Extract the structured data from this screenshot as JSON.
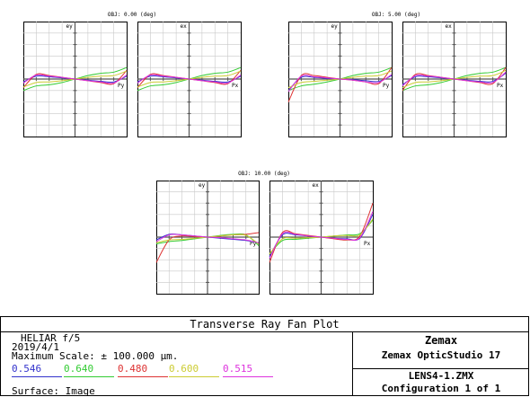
{
  "plot": {
    "title": "Transverse Ray Fan Plot",
    "fields": [
      {
        "label": "OBJ: 0.00 (deg)",
        "ey_label": "ey",
        "ex_label": "ex",
        "py_label": "Py",
        "px_label": "Px"
      },
      {
        "label": "OBJ: 5.00 (deg)",
        "ey_label": "ey",
        "ex_label": "ex",
        "py_label": "Py",
        "px_label": "Px"
      },
      {
        "label": "OBJ: 10.00 (deg)",
        "ey_label": "ey",
        "ex_label": "ex",
        "py_label": "Py",
        "px_label": "Px"
      }
    ]
  },
  "info": {
    "lens_title": "HELIAR  f/5",
    "date": "2019/4/1",
    "max_scale": "Maximum Scale: ± 100.000 µm.",
    "surface": "Surface: Image"
  },
  "wavelengths": [
    {
      "value": "0.546",
      "color": "#3333cc"
    },
    {
      "value": "0.640",
      "color": "#33cc33"
    },
    {
      "value": "0.480",
      "color": "#dd3333"
    },
    {
      "value": "0.600",
      "color": "#cccc33"
    },
    {
      "value": "0.515",
      "color": "#dd33dd"
    }
  ],
  "brand": {
    "company": "Zemax",
    "product": "Zemax OpticStudio 17",
    "file": "LENS4-1.ZMX",
    "config": "Configuration 1 of 1"
  },
  "chart_data": {
    "type": "line",
    "title": "Transverse Ray Fan Plot",
    "max_scale_um": 100,
    "x_range": [
      -1,
      1
    ],
    "y_range_um": [
      -100,
      100
    ],
    "wavelengths_um": [
      0.546,
      0.64,
      0.48,
      0.6,
      0.515
    ],
    "plots": [
      {
        "field": "OBJ: 0.00 (deg)",
        "axis": "ey vs Py",
        "x": [
          -1,
          -0.75,
          -0.5,
          -0.25,
          0,
          0.25,
          0.5,
          0.75,
          1
        ],
        "series": [
          {
            "name": "0.546",
            "values": [
              -5,
              5,
              4,
              2,
              0,
              -2,
              -4,
              -5,
              5
            ]
          },
          {
            "name": "0.640",
            "values": [
              -20,
              -12,
              -10,
              -6,
              0,
              6,
              10,
              12,
              20
            ]
          },
          {
            "name": "0.480",
            "values": [
              -15,
              8,
              6,
              3,
              0,
              -3,
              -6,
              -8,
              15
            ]
          },
          {
            "name": "0.600",
            "values": [
              -14,
              -6,
              -5,
              -3,
              0,
              3,
              5,
              6,
              14
            ]
          },
          {
            "name": "0.515",
            "values": [
              -7,
              7,
              5,
              3,
              0,
              -3,
              -5,
              -7,
              7
            ]
          }
        ]
      },
      {
        "field": "OBJ: 0.00 (deg)",
        "axis": "ex vs Px",
        "x": [
          -1,
          -0.75,
          -0.5,
          -0.25,
          0,
          0.25,
          0.5,
          0.75,
          1
        ],
        "series": [
          {
            "name": "0.546",
            "values": [
              -5,
              5,
              4,
              2,
              0,
              -2,
              -4,
              -5,
              5
            ]
          },
          {
            "name": "0.640",
            "values": [
              -20,
              -12,
              -10,
              -6,
              0,
              6,
              10,
              12,
              20
            ]
          },
          {
            "name": "0.480",
            "values": [
              -15,
              8,
              6,
              3,
              0,
              -3,
              -6,
              -8,
              15
            ]
          },
          {
            "name": "0.600",
            "values": [
              -14,
              -6,
              -5,
              -3,
              0,
              3,
              5,
              6,
              14
            ]
          },
          {
            "name": "0.515",
            "values": [
              -7,
              7,
              5,
              3,
              0,
              -3,
              -5,
              -7,
              7
            ]
          }
        ]
      },
      {
        "field": "OBJ: 5.00 (deg)",
        "axis": "ey vs Py",
        "x": [
          -1,
          -0.75,
          -0.5,
          -0.25,
          0,
          0.25,
          0.5,
          0.75,
          1
        ],
        "series": [
          {
            "name": "0.546",
            "values": [
              -20,
              3,
              3,
              1,
              0,
              -1,
              -3,
              -4,
              6
            ]
          },
          {
            "name": "0.640",
            "values": [
              -20,
              -12,
              -9,
              -5,
              0,
              6,
              10,
              12,
              20
            ]
          },
          {
            "name": "0.480",
            "values": [
              -40,
              6,
              6,
              3,
              0,
              -2,
              -5,
              -8,
              20
            ]
          },
          {
            "name": "0.600",
            "values": [
              -15,
              -6,
              -4,
              -2,
              0,
              3,
              5,
              6,
              14
            ]
          },
          {
            "name": "0.515",
            "values": [
              -22,
              5,
              4,
              2,
              0,
              -2,
              -5,
              -6,
              8
            ]
          }
        ]
      },
      {
        "field": "OBJ: 5.00 (deg)",
        "axis": "ex vs Px",
        "x": [
          -1,
          -0.75,
          -0.5,
          -0.25,
          0,
          0.25,
          0.5,
          0.75,
          1
        ],
        "series": [
          {
            "name": "0.546",
            "values": [
              -10,
              4,
              4,
              2,
              0,
              -2,
              -4,
              -4,
              10
            ]
          },
          {
            "name": "0.640",
            "values": [
              -20,
              -12,
              -10,
              -6,
              0,
              6,
              10,
              12,
              20
            ]
          },
          {
            "name": "0.480",
            "values": [
              -20,
              8,
              6,
              3,
              0,
              -3,
              -6,
              -8,
              20
            ]
          },
          {
            "name": "0.600",
            "values": [
              -15,
              -6,
              -5,
              -3,
              0,
              3,
              5,
              6,
              15
            ]
          },
          {
            "name": "0.515",
            "values": [
              -12,
              6,
              5,
              3,
              0,
              -3,
              -5,
              -6,
              12
            ]
          }
        ]
      },
      {
        "field": "OBJ: 10.00 (deg)",
        "axis": "ey vs Py",
        "x": [
          -1,
          -0.75,
          -0.5,
          -0.25,
          0,
          0.25,
          0.5,
          0.75,
          1
        ],
        "series": [
          {
            "name": "0.546",
            "values": [
              -5,
              5,
              4,
              2,
              0,
              -2,
              -4,
              -6,
              -10
            ]
          },
          {
            "name": "0.640",
            "values": [
              -12,
              -8,
              -6,
              -3,
              0,
              3,
              5,
              4,
              -15
            ]
          },
          {
            "name": "0.480",
            "values": [
              -45,
              -5,
              2,
              1,
              0,
              2,
              4,
              5,
              8
            ]
          },
          {
            "name": "0.600",
            "values": [
              -10,
              -5,
              -4,
              -2,
              0,
              2,
              4,
              3,
              -12
            ]
          },
          {
            "name": "0.515",
            "values": [
              -8,
              4,
              4,
              2,
              0,
              -1,
              -3,
              -5,
              -10
            ]
          }
        ]
      },
      {
        "field": "OBJ: 10.00 (deg)",
        "axis": "ex vs Px",
        "x": [
          -1,
          -0.75,
          -0.5,
          -0.25,
          0,
          0.25,
          0.5,
          0.75,
          1
        ],
        "series": [
          {
            "name": "0.546",
            "values": [
              -35,
              4,
              4,
              2,
              0,
              -2,
              -3,
              -2,
              40
            ]
          },
          {
            "name": "0.640",
            "values": [
              -30,
              -6,
              -4,
              -2,
              0,
              2,
              4,
              6,
              30
            ]
          },
          {
            "name": "0.480",
            "values": [
              -45,
              8,
              6,
              3,
              0,
              -3,
              -5,
              2,
              60
            ]
          },
          {
            "name": "0.600",
            "values": [
              -30,
              -3,
              -2,
              -1,
              0,
              2,
              3,
              4,
              32
            ]
          },
          {
            "name": "0.515",
            "values": [
              -38,
              6,
              5,
              2,
              0,
              -2,
              -4,
              -1,
              45
            ]
          }
        ]
      }
    ]
  }
}
